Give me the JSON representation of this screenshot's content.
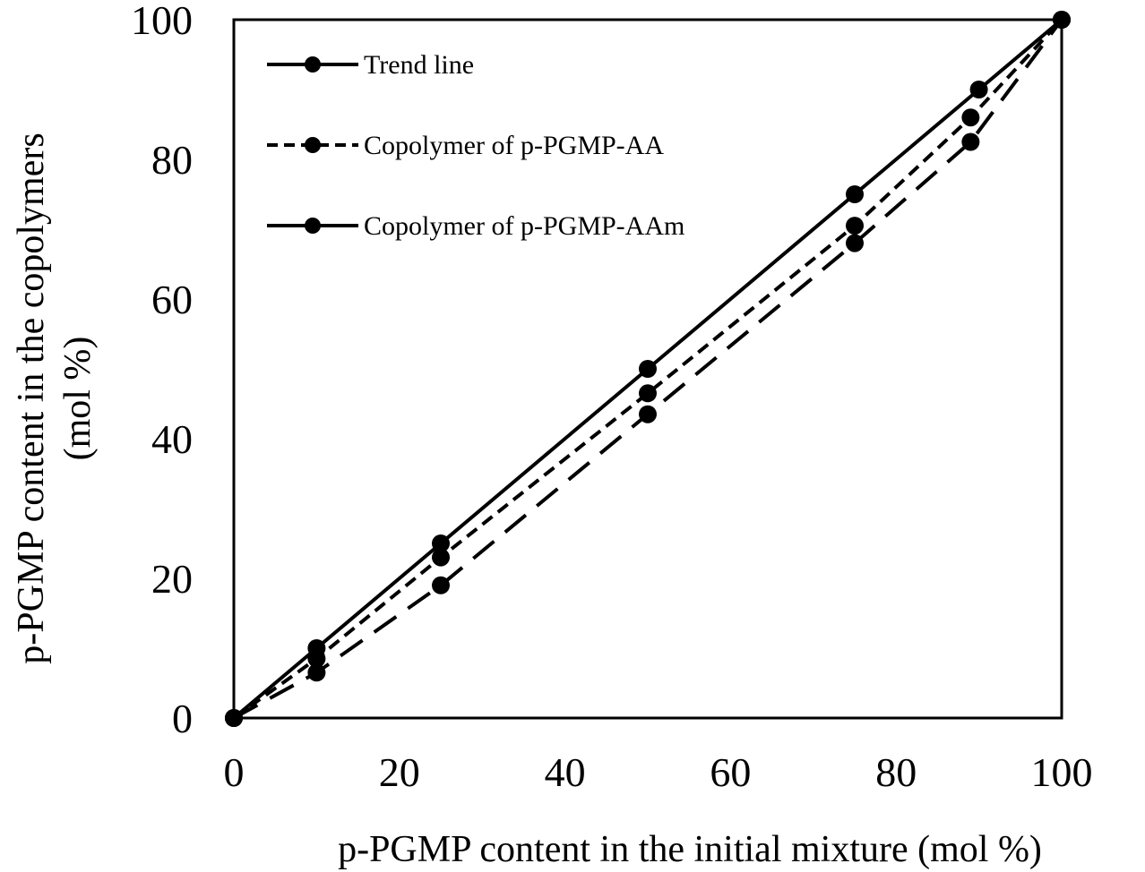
{
  "chart_data": {
    "type": "line",
    "xlabel": "p-PGMP content in the initial mixture (mol %)",
    "ylabel_line1": "p-PGMP content in the copolymers",
    "ylabel_line2": "(mol %)",
    "xlim": [
      0,
      100
    ],
    "ylim": [
      0,
      100
    ],
    "x_ticks": [
      "0",
      "20",
      "40",
      "60",
      "80",
      "100"
    ],
    "y_ticks": [
      "0",
      "20",
      "40",
      "60",
      "80",
      "100"
    ],
    "grid": false,
    "legend_position": "top-left",
    "series": [
      {
        "name": "Trend line",
        "style": "solid",
        "color": "#000000",
        "points": [
          [
            0,
            0
          ],
          [
            10,
            10
          ],
          [
            25,
            25
          ],
          [
            50,
            50
          ],
          [
            75,
            75
          ],
          [
            90,
            90
          ],
          [
            100,
            100
          ]
        ]
      },
      {
        "name": "Copolymer of p-PGMP-AA",
        "style": "dashed",
        "color": "#000000",
        "points": [
          [
            0,
            0
          ],
          [
            10,
            8.5
          ],
          [
            25,
            23
          ],
          [
            50,
            46.5
          ],
          [
            75,
            70.5
          ],
          [
            89,
            86
          ],
          [
            100,
            100
          ]
        ]
      },
      {
        "name": "Copolymer of p-PGMP-AAm",
        "style": "solid",
        "color": "#000000",
        "points": [
          [
            0,
            0
          ],
          [
            10,
            6.5
          ],
          [
            25,
            19
          ],
          [
            50,
            43.5
          ],
          [
            75,
            68
          ],
          [
            89,
            82.5
          ],
          [
            100,
            100
          ]
        ]
      }
    ],
    "unlabeled_series_style": "long-dash"
  }
}
